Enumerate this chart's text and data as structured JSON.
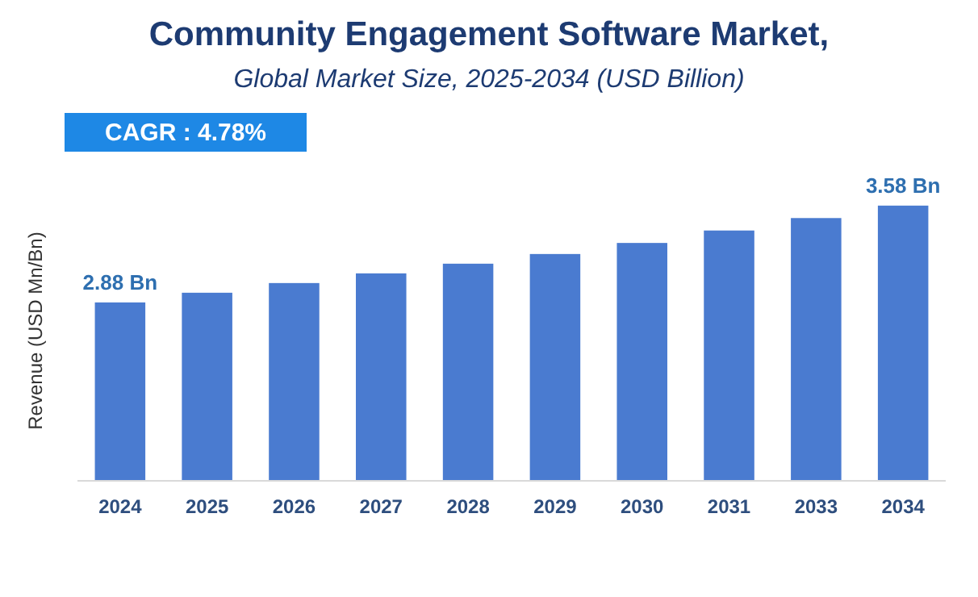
{
  "chart_data": {
    "type": "bar",
    "title": "Community Engagement Software Market,",
    "subtitle": "Global Market Size, 2025-2034 (USD Billion)",
    "ylabel": "Revenue (USD Mn/Bn)",
    "annotations": [
      "CAGR : 4.78%"
    ],
    "categories": [
      "2024",
      "2025",
      "2026",
      "2027",
      "2028",
      "2029",
      "2030",
      "2031",
      "2033",
      "2034"
    ],
    "values": [
      2.88,
      2.95,
      3.02,
      3.09,
      3.16,
      3.23,
      3.31,
      3.4,
      3.49,
      3.58
    ],
    "ylim": [
      1.59,
      3.62
    ],
    "tick_labels": "x",
    "value_labels": [
      "2.88 Bn",
      null,
      null,
      null,
      null,
      null,
      null,
      null,
      null,
      "3.58 Bn"
    ],
    "color": "#4a7bd0"
  }
}
